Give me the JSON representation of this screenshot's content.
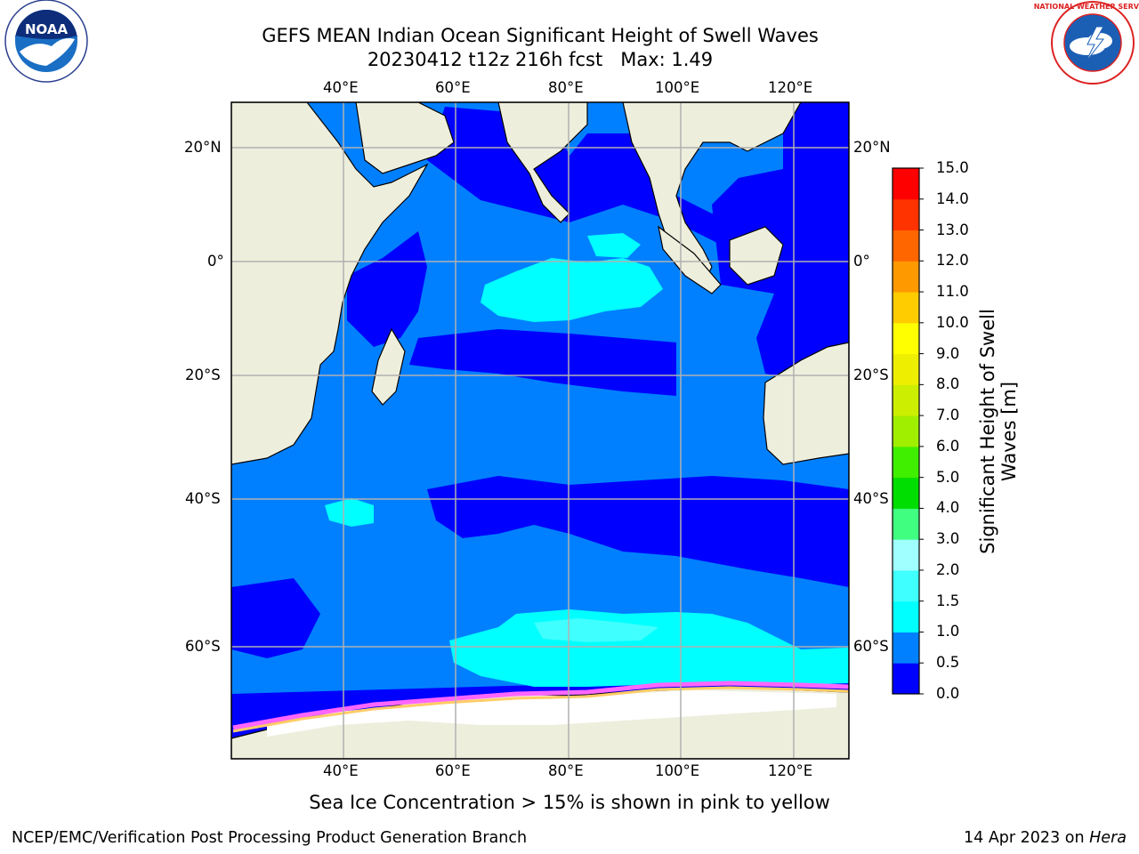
{
  "title": {
    "line1": "GEFS MEAN Indian Ocean Significant Height of Swell Waves",
    "line2": "20230412 t12z 216h fcst   Max: 1.49"
  },
  "caption": "Sea Ice Concentration > 15% is shown in pink to yellow",
  "footer": {
    "left": "NCEP/EMC/Verification Post Processing Product Generation Branch",
    "date": "14 Apr 2023 on ",
    "machine": "Hera"
  },
  "logos": {
    "left": "NOAA",
    "right": "NATIONAL WEATHER SERVICE"
  },
  "map": {
    "lon_ticks": [
      "40°E",
      "60°E",
      "80°E",
      "100°E",
      "120°E"
    ],
    "lat_ticks": [
      "20°N",
      "0°",
      "20°S",
      "40°S",
      "60°S"
    ]
  },
  "colorbar": {
    "label": "Significant Height of Swell Waves [m]",
    "ticks": [
      "0.0",
      "0.5",
      "1.0",
      "1.5",
      "2.0",
      "3.0",
      "4.0",
      "5.0",
      "6.0",
      "7.0",
      "8.0",
      "9.0",
      "10.0",
      "11.0",
      "12.0",
      "13.0",
      "14.0",
      "15.0"
    ],
    "colors": [
      "#0000ff",
      "#0080ff",
      "#00ffff",
      "#40ffff",
      "#a0ffff",
      "#40ff80",
      "#00dd00",
      "#40ee00",
      "#a0ee00",
      "#ccee00",
      "#eeee00",
      "#ffff00",
      "#ffcc00",
      "#ff9900",
      "#ff6600",
      "#ff3300",
      "#ff0000"
    ]
  }
}
